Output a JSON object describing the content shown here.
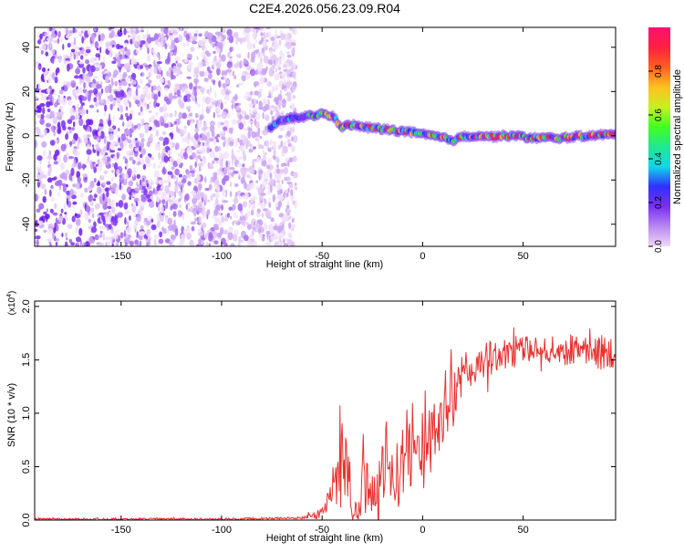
{
  "title": "C2E4.2026.056.23.09.R04",
  "colors": {
    "snr_line": "#e8322e",
    "axis": "#000000",
    "text": "#000000",
    "colorbar": [
      "#f0d8f8",
      "#b888f0",
      "#7a30f0",
      "#3030ff",
      "#10d8e8",
      "#20e890",
      "#40ff20",
      "#c8f020",
      "#ffc020",
      "#ff6020",
      "#ff2040",
      "#ff1070"
    ]
  },
  "chart_data": [
    {
      "type": "heatmap",
      "xlabel": "Height of straight line (km)",
      "ylabel": "Frequency (Hz)",
      "xlim": [
        -193,
        96
      ],
      "ylim": [
        -50,
        49
      ],
      "xticks": [
        -150,
        -100,
        -50,
        0,
        50
      ],
      "xtick_labels": [
        "-150",
        "-100",
        "-50",
        "0",
        "50"
      ],
      "yticks": [
        -40,
        -20,
        0,
        20,
        40
      ],
      "ytick_labels": [
        "-40",
        "-20",
        "0",
        "20",
        "40"
      ],
      "noise_region_x": [
        -193,
        -63
      ],
      "signal_track": {
        "x": [
          -75,
          -70,
          -65,
          -60,
          -55,
          -50,
          -45,
          -40,
          -35,
          -30,
          -25,
          -20,
          -15,
          -10,
          -5,
          0,
          5,
          10,
          15,
          20,
          25,
          30,
          35,
          40,
          45,
          50,
          55,
          60,
          65,
          70,
          75,
          80,
          85,
          90,
          95
        ],
        "y": [
          4,
          7,
          8,
          8.5,
          9,
          10,
          9,
          4,
          5,
          4,
          3.5,
          3,
          2.5,
          2,
          1.5,
          0.5,
          0,
          -1,
          -2,
          -0.5,
          0,
          0,
          -0.5,
          0,
          0,
          -0.5,
          -1,
          -1,
          -1,
          -1,
          -0.5,
          0,
          0,
          0.5,
          0.5
        ]
      },
      "colorbar": {
        "label": "Normalized spectral amplitude",
        "range": [
          0.0,
          1.0
        ],
        "ticks": [
          0.0,
          0.2,
          0.4,
          0.6,
          0.8
        ],
        "tick_labels": [
          "0.0",
          "0.2",
          "0.4",
          "0.6",
          "0.8"
        ]
      }
    },
    {
      "type": "line",
      "xlabel": "Height of straight line (km)",
      "ylabel": "SNR (10 * v/v)",
      "exponent_label": "(x10",
      "exponent_value": "4",
      "exponent_close": ")",
      "xlim": [
        -193,
        96
      ],
      "ylim": [
        0,
        2.05
      ],
      "xticks": [
        -150,
        -100,
        -50,
        0,
        50
      ],
      "xtick_labels": [
        "-150",
        "-100",
        "-50",
        "0",
        "50"
      ],
      "yticks": [
        0.0,
        0.5,
        1.0,
        1.5,
        2.0
      ],
      "ytick_labels": [
        "0.0",
        "0.5",
        "1.0",
        "1.5",
        "2.0"
      ],
      "series": [
        {
          "name": "SNR",
          "x": [
            -193,
            -150,
            -100,
            -60,
            -55,
            -52,
            -48,
            -45,
            -42,
            -40,
            -38,
            -36,
            -34,
            -32,
            -30,
            -28,
            -25,
            -22,
            -20,
            -18,
            -15,
            -12,
            -10,
            -5,
            0,
            5,
            10,
            15,
            20,
            25,
            30,
            35,
            40,
            45,
            50,
            55,
            60,
            65,
            70,
            75,
            80,
            85,
            90,
            96
          ],
          "mid": [
            0.01,
            0.01,
            0.01,
            0.02,
            0.04,
            0.06,
            0.15,
            0.25,
            0.38,
            0.55,
            0.45,
            0.3,
            0.12,
            0.05,
            0.5,
            0.4,
            0.25,
            0.2,
            0.42,
            0.6,
            0.35,
            0.45,
            0.55,
            0.6,
            0.7,
            0.78,
            0.95,
            1.15,
            1.3,
            1.42,
            1.5,
            1.52,
            1.55,
            1.58,
            1.6,
            1.6,
            1.62,
            1.6,
            1.58,
            1.6,
            1.62,
            1.58,
            1.56,
            1.6
          ],
          "amp": [
            0.008,
            0.008,
            0.008,
            0.01,
            0.03,
            0.05,
            0.08,
            0.12,
            0.25,
            0.5,
            0.3,
            0.25,
            0.1,
            0.05,
            0.35,
            0.3,
            0.25,
            0.3,
            0.3,
            0.35,
            0.3,
            0.35,
            0.3,
            0.3,
            0.3,
            0.28,
            0.3,
            0.3,
            0.25,
            0.2,
            0.18,
            0.15,
            0.14,
            0.14,
            0.12,
            0.12,
            0.12,
            0.12,
            0.15,
            0.14,
            0.14,
            0.16,
            0.18,
            0.16
          ]
        }
      ]
    }
  ]
}
